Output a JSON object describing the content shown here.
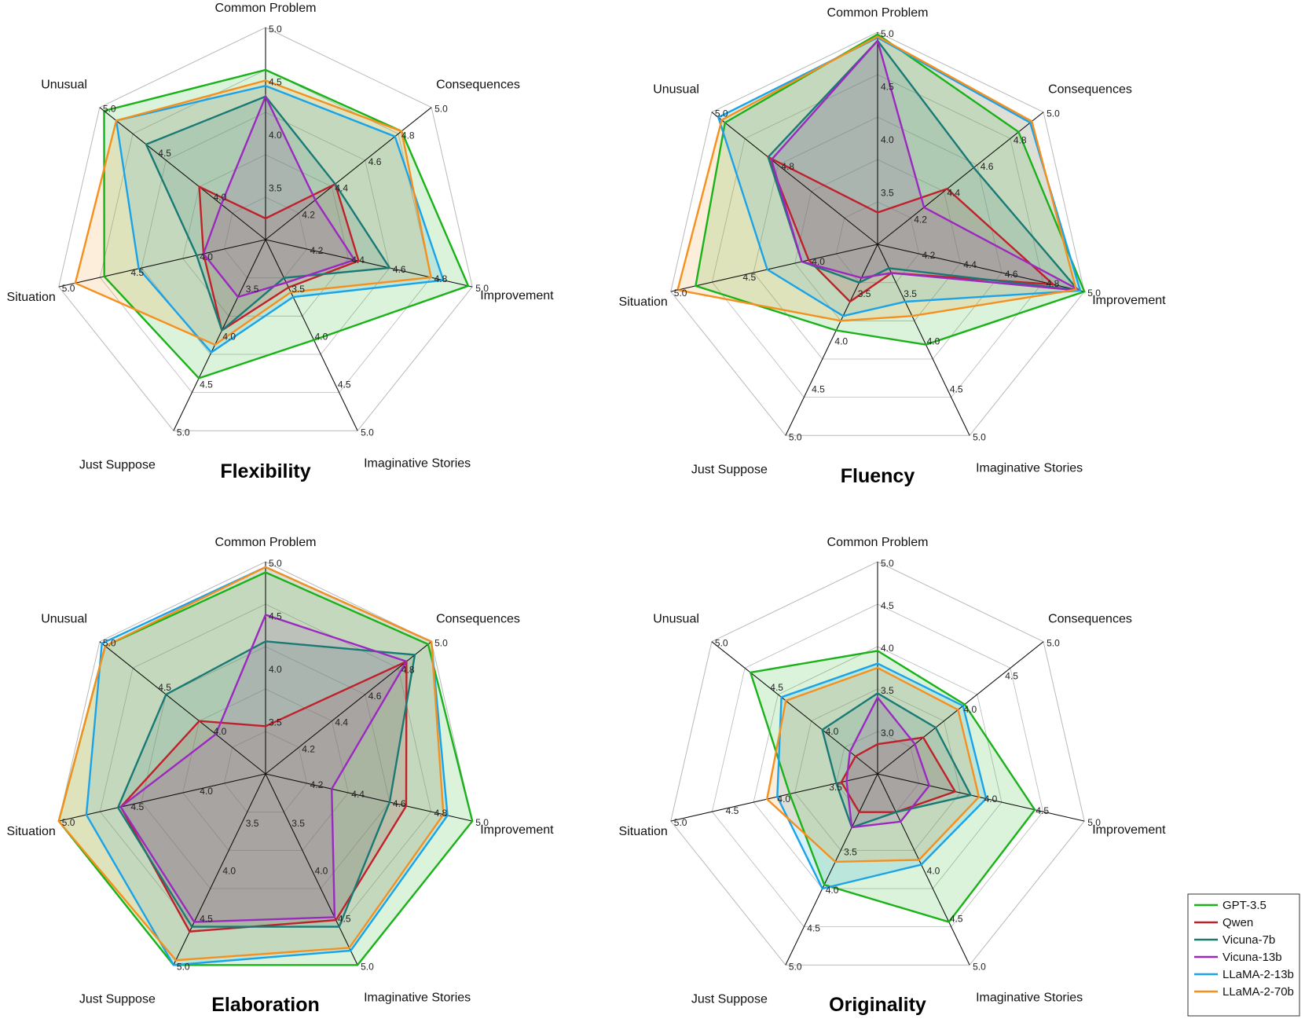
{
  "legend": {
    "entries": [
      "GPT-3.5",
      "Qwen",
      "Vicuna-7b",
      "Vicuna-13b",
      "LLaMA-2-13b",
      "LLaMA-2-70b"
    ]
  },
  "colors": {
    "GPT-3.5": "#19b219",
    "Qwen": "#c0202a",
    "Vicuna-7b": "#197a75",
    "Vicuna-13b": "#9b29c0",
    "LLaMA-2-13b": "#1aa3e8",
    "LLaMA-2-70b": "#f5901e"
  },
  "chart_data": [
    {
      "type": "radar",
      "title": "Flexibility",
      "axes": [
        "Common Problem",
        "Consequences",
        "Improvement",
        "Imaginative Stories",
        "Just Suppose",
        "Situation",
        "Unusual"
      ],
      "ranges": [
        [
          3.0,
          5.0
        ],
        [
          4.0,
          5.0
        ],
        [
          4.0,
          5.0
        ],
        [
          3.0,
          5.0
        ],
        [
          3.0,
          5.0
        ],
        [
          3.5,
          5.0
        ],
        [
          3.5,
          5.0
        ]
      ],
      "ticks": [
        [
          "3.5",
          "4.0",
          "4.5",
          "5.0"
        ],
        [
          "4.2",
          "4.4",
          "4.6",
          "4.8",
          "5.0"
        ],
        [
          "4.2",
          "4.4",
          "4.6",
          "4.8",
          "5.0"
        ],
        [
          "3.5",
          "4.0",
          "4.5",
          "5.0"
        ],
        [
          "3.5",
          "4.0",
          "4.5",
          "5.0"
        ],
        [
          "4.0",
          "4.5",
          "5.0"
        ],
        [
          "4.0",
          "4.5",
          "5.0"
        ]
      ],
      "series": [
        {
          "name": "GPT-3.5",
          "values": [
            4.6,
            4.82,
            4.98,
            4.05,
            4.45,
            4.67,
            4.96
          ]
        },
        {
          "name": "Qwen",
          "values": [
            3.2,
            4.42,
            4.45,
            3.5,
            3.95,
            3.95,
            4.1
          ]
        },
        {
          "name": "Vicuna-7b",
          "values": [
            4.35,
            4.42,
            4.6,
            3.4,
            3.95,
            4.0,
            4.58
          ]
        },
        {
          "name": "Vicuna-13b",
          "values": [
            4.35,
            4.3,
            4.43,
            3.45,
            3.6,
            3.95,
            3.9
          ]
        },
        {
          "name": "LLaMA-2-13b",
          "values": [
            4.45,
            4.78,
            4.86,
            3.6,
            4.18,
            4.42,
            4.85
          ]
        },
        {
          "name": "LLaMA-2-70b",
          "values": [
            4.5,
            4.82,
            4.8,
            3.55,
            4.1,
            4.88,
            4.85
          ]
        }
      ]
    },
    {
      "type": "radar",
      "title": "Fluency",
      "axes": [
        "Common Problem",
        "Consequences",
        "Improvement",
        "Imaginative Stories",
        "Just Suppose",
        "Situation",
        "Unusual"
      ],
      "ranges": [
        [
          3.0,
          5.0
        ],
        [
          4.0,
          5.0
        ],
        [
          4.0,
          5.0
        ],
        [
          3.0,
          5.0
        ],
        [
          3.0,
          5.0
        ],
        [
          3.5,
          5.0
        ],
        [
          4.5,
          5.0
        ]
      ],
      "ticks": [
        [
          "3.5",
          "4.0",
          "4.5",
          "5.0"
        ],
        [
          "4.2",
          "4.4",
          "4.6",
          "4.8",
          "5.0"
        ],
        [
          "4.2",
          "4.4",
          "4.6",
          "4.8",
          "5.0"
        ],
        [
          "3.5",
          "4.0",
          "4.5",
          "5.0"
        ],
        [
          "3.5",
          "4.0",
          "4.5",
          "5.0"
        ],
        [
          "4.0",
          "4.5",
          "5.0"
        ],
        [
          "4.8",
          "5.0"
        ]
      ],
      "series": [
        {
          "name": "GPT-3.5",
          "values": [
            4.98,
            4.85,
            5.0,
            4.05,
            3.9,
            4.82,
            4.96
          ]
        },
        {
          "name": "Qwen",
          "values": [
            3.3,
            4.42,
            4.85,
            3.3,
            3.6,
            4.0,
            4.83
          ]
        },
        {
          "name": "Vicuna-7b",
          "values": [
            4.92,
            4.58,
            4.97,
            3.25,
            3.4,
            4.05,
            4.83
          ]
        },
        {
          "name": "Vicuna-13b",
          "values": [
            4.92,
            4.28,
            4.98,
            3.3,
            3.35,
            4.05,
            4.82
          ]
        },
        {
          "name": "LLaMA-2-13b",
          "values": [
            4.95,
            4.92,
            4.98,
            3.6,
            3.75,
            4.3,
            4.98
          ]
        },
        {
          "name": "LLaMA-2-70b",
          "values": [
            4.96,
            4.93,
            4.96,
            3.75,
            3.8,
            4.95,
            4.97
          ]
        }
      ]
    },
    {
      "type": "radar",
      "title": "Elaboration",
      "axes": [
        "Common Problem",
        "Consequences",
        "Improvement",
        "Imaginative Stories",
        "Just Suppose",
        "Situation",
        "Unusual"
      ],
      "ranges": [
        [
          3.0,
          5.0
        ],
        [
          4.0,
          5.0
        ],
        [
          4.0,
          5.0
        ],
        [
          3.0,
          5.0
        ],
        [
          3.0,
          5.0
        ],
        [
          3.5,
          5.0
        ],
        [
          3.5,
          5.0
        ]
      ],
      "ticks": [
        [
          "3.5",
          "4.0",
          "4.5",
          "5.0"
        ],
        [
          "4.2",
          "4.4",
          "4.6",
          "4.8",
          "5.0"
        ],
        [
          "4.2",
          "4.4",
          "4.6",
          "4.8",
          "5.0"
        ],
        [
          "3.5",
          "4.0",
          "4.5",
          "5.0"
        ],
        [
          "3.5",
          "4.0",
          "4.5",
          "5.0"
        ],
        [
          "4.0",
          "4.5",
          "5.0"
        ],
        [
          "4.0",
          "4.5",
          "5.0"
        ]
      ],
      "series": [
        {
          "name": "GPT-3.5",
          "values": [
            4.9,
            4.98,
            5.0,
            5.0,
            5.0,
            5.0,
            4.95
          ]
        },
        {
          "name": "Qwen",
          "values": [
            3.45,
            4.85,
            4.68,
            4.53,
            4.65,
            4.55,
            4.1
          ]
        },
        {
          "name": "Vicuna-7b",
          "values": [
            4.25,
            4.9,
            4.6,
            4.6,
            4.6,
            4.57,
            4.4
          ]
        },
        {
          "name": "Vicuna-13b",
          "values": [
            4.5,
            4.85,
            4.32,
            4.5,
            4.55,
            4.55,
            3.95
          ]
        },
        {
          "name": "LLaMA-2-13b",
          "values": [
            4.95,
            5.0,
            4.88,
            4.85,
            5.0,
            4.8,
            4.98
          ]
        },
        {
          "name": "LLaMA-2-70b",
          "values": [
            4.95,
            5.0,
            4.86,
            4.82,
            4.95,
            5.0,
            4.95
          ]
        }
      ]
    },
    {
      "type": "radar",
      "title": "Originality",
      "axes": [
        "Common Problem",
        "Consequences",
        "Improvement",
        "Imaginative Stories",
        "Just Suppose",
        "Situation",
        "Unusual"
      ],
      "ranges": [
        [
          2.5,
          5.0
        ],
        [
          3.0,
          5.0
        ],
        [
          3.0,
          5.0
        ],
        [
          3.0,
          5.0
        ],
        [
          2.5,
          5.0
        ],
        [
          3.0,
          5.0
        ],
        [
          3.5,
          5.0
        ]
      ],
      "ticks": [
        [
          "3.0",
          "3.5",
          "4.0",
          "4.5",
          "5.0"
        ],
        [
          "4.0",
          "4.5",
          "5.0"
        ],
        [
          "4.0",
          "4.5",
          "5.0"
        ],
        [
          "4.0",
          "4.5",
          "5.0"
        ],
        [
          "3.5",
          "4.0",
          "4.5",
          "5.0"
        ],
        [
          "3.5",
          "4.0",
          "4.5",
          "5.0"
        ],
        [
          "4.0",
          "4.5",
          "5.0"
        ]
      ],
      "series": [
        {
          "name": "GPT-3.5",
          "values": [
            3.95,
            4.05,
            4.52,
            4.55,
            3.95,
            3.85,
            4.65
          ]
        },
        {
          "name": "Qwen",
          "values": [
            2.85,
            3.55,
            3.75,
            3.4,
            3.0,
            3.35,
            3.7
          ]
        },
        {
          "name": "Vicuna-7b",
          "values": [
            3.45,
            3.7,
            3.9,
            3.4,
            3.2,
            3.4,
            4.0
          ]
        },
        {
          "name": "Vicuna-13b",
          "values": [
            3.4,
            3.45,
            3.5,
            3.5,
            3.2,
            3.3,
            3.75
          ]
        },
        {
          "name": "LLaMA-2-13b",
          "values": [
            3.8,
            4.03,
            4.05,
            3.95,
            4.0,
            3.97,
            4.37
          ]
        },
        {
          "name": "LLaMA-2-70b",
          "values": [
            3.75,
            3.97,
            3.98,
            3.9,
            3.65,
            4.07,
            4.33
          ]
        }
      ]
    }
  ]
}
